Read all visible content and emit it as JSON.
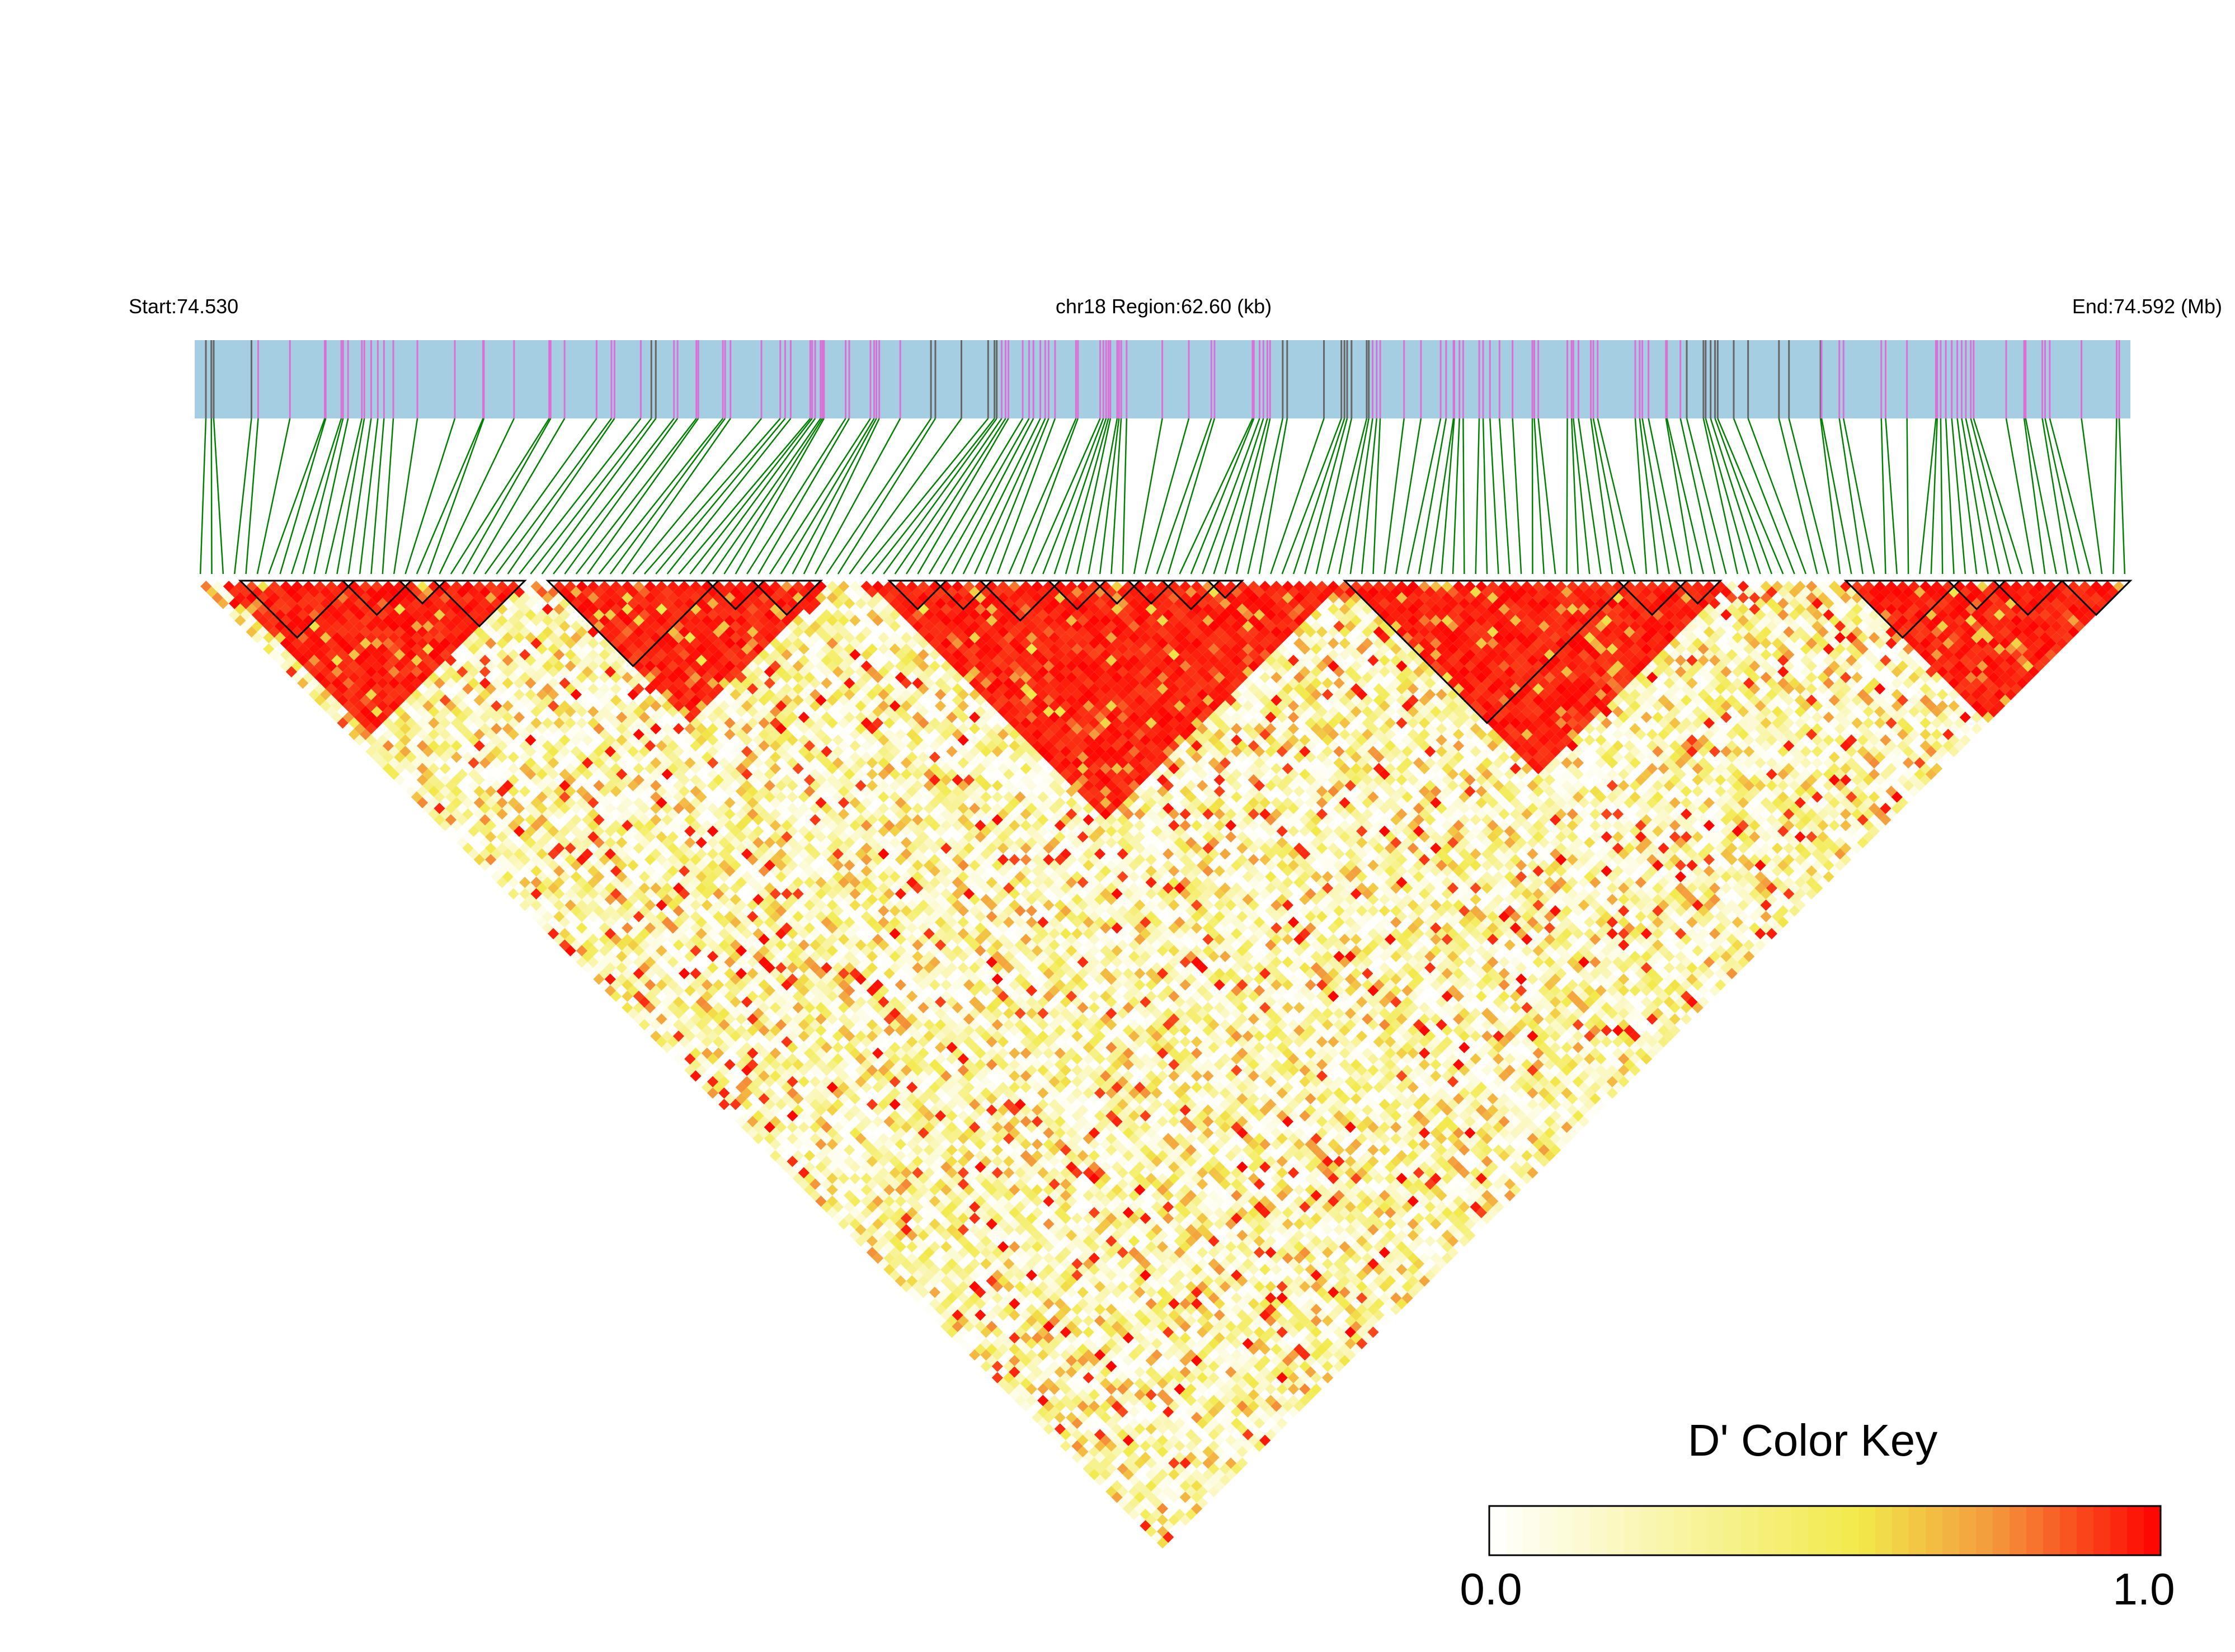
{
  "chart_data": {
    "type": "heatmap",
    "subtype": "linkage-disequilibrium-triangle",
    "header": {
      "start_label": "Start:74.530",
      "region_label": "chr18 Region:62.60 (kb)",
      "end_label": "End:74.592 (Mb)"
    },
    "chromosome": "chr18",
    "region_start_mb": 74.53,
    "region_end_mb": 74.592,
    "region_size_kb": 62.6,
    "snp_count": 170,
    "snp_band_colors": {
      "band": "#a6cee3",
      "snp": "#666666",
      "block_snp": "#da70d6",
      "connector": "#008000"
    },
    "haplotype_blocks": [
      {
        "from": 4,
        "to": 13
      },
      {
        "from": 13,
        "to": 18
      },
      {
        "from": 18,
        "to": 21
      },
      {
        "from": 21,
        "to": 28
      },
      {
        "from": 31,
        "to": 45
      },
      {
        "from": 45,
        "to": 49
      },
      {
        "from": 49,
        "to": 54
      },
      {
        "from": 61,
        "to": 65
      },
      {
        "from": 65,
        "to": 69
      },
      {
        "from": 69,
        "to": 75
      },
      {
        "from": 75,
        "to": 79
      },
      {
        "from": 79,
        "to": 82
      },
      {
        "from": 82,
        "to": 85
      },
      {
        "from": 85,
        "to": 89
      },
      {
        "from": 89,
        "to": 91
      },
      {
        "from": 101,
        "to": 125
      },
      {
        "from": 125,
        "to": 130
      },
      {
        "from": 130,
        "to": 133
      },
      {
        "from": 145,
        "to": 154
      },
      {
        "from": 154,
        "to": 158
      },
      {
        "from": 158,
        "to": 163
      },
      {
        "from": 164,
        "to": 169
      }
    ],
    "strong_ld_segments": [
      [
        2,
        28
      ],
      [
        31,
        55
      ],
      [
        59,
        100
      ],
      [
        101,
        134
      ],
      [
        145,
        169
      ]
    ],
    "color_key": {
      "title": "D' Color Key",
      "min_label": "0.0",
      "max_label": "1.0",
      "min": 0.0,
      "max": 1.0,
      "stops": [
        "#ffffff",
        "#f2ea4b",
        "#f39a3c",
        "#ff0000"
      ]
    }
  }
}
